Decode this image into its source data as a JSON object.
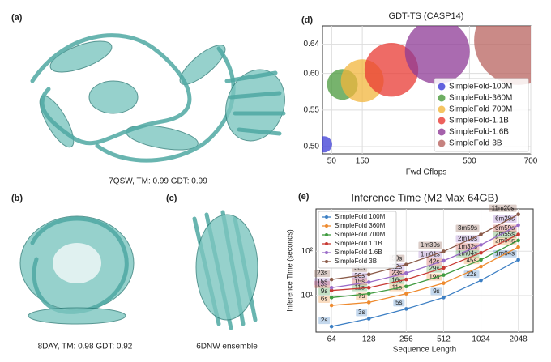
{
  "panels": [
    {
      "label": "(a)",
      "caption": "7QSW, TM: 0.99 GDT: 0.99"
    },
    {
      "label": "(b)",
      "caption": "8DAY, TM: 0.98 GDT: 0.92"
    },
    {
      "label": "(c)",
      "caption": "6DNW ensemble"
    }
  ],
  "chart_data": [
    {
      "panel_label": "(d)",
      "type": "scatter",
      "title": "GDT-TS (CASP14)",
      "x_label": "Fwd Gflops",
      "xlim": [
        20,
        700
      ],
      "xticks": [
        50,
        150,
        500,
        700
      ],
      "ylim": [
        0.49,
        0.665
      ],
      "yticks": [
        {
          "value": 0.5,
          "label": "0.50"
        },
        0.55,
        {
          "value": 0.6,
          "label": "0.60"
        },
        0.64
      ],
      "grid": true,
      "legend": "lower right",
      "series": [
        {
          "name": "SimpleFold-100M",
          "color": "#3b3bd6",
          "x": [
            25
          ],
          "values": [
            0.503
          ],
          "sizes": [
            100
          ]
        },
        {
          "name": "SimpleFold-360M",
          "color": "#4a9a3c",
          "x": [
            85
          ],
          "values": [
            0.585
          ],
          "sizes": [
            360
          ]
        },
        {
          "name": "SimpleFold-700M",
          "color": "#f2b63c",
          "x": [
            150
          ],
          "values": [
            0.59
          ],
          "sizes": [
            700
          ]
        },
        {
          "name": "SimpleFold-1.1B",
          "color": "#e83a33",
          "x": [
            245
          ],
          "values": [
            0.605
          ],
          "sizes": [
            1100
          ]
        },
        {
          "name": "SimpleFold-1.6B",
          "color": "#8e3a96",
          "x": [
            395
          ],
          "values": [
            0.63
          ],
          "sizes": [
            1600
          ]
        },
        {
          "name": "SimpleFold-3B",
          "color": "#b8635f",
          "x": [
            660
          ],
          "values": [
            0.645
          ],
          "sizes": [
            3000
          ]
        }
      ]
    },
    {
      "panel_label": "(e)",
      "type": "line",
      "title": "Inference Time (M2 Max 64GB)",
      "x_label": "Sequence Length",
      "y_label": "Inference Time (seconds)",
      "x": [
        64,
        128,
        256,
        512,
        1024,
        2048
      ],
      "xscale": "log",
      "yscale": "log",
      "xlim": [
        48,
        2700
      ],
      "xticks": [
        64,
        128,
        256,
        512,
        1024,
        2048
      ],
      "ylim": [
        1.5,
        900
      ],
      "yticks": [
        {
          "value": 10,
          "label": "10¹"
        },
        {
          "value": 100,
          "label": "10²"
        }
      ],
      "grid": true,
      "legend": "upper left",
      "series": [
        {
          "name": "SimpleFold 100M",
          "color": "#3c7fc4",
          "values": [
            2,
            3,
            5,
            9,
            22,
            64
          ],
          "value_labels": [
            "2s",
            "3s",
            "5s",
            "9s",
            "22s",
            "1m04s"
          ]
        },
        {
          "name": "SimpleFold 360M",
          "color": "#ee8a2e",
          "values": [
            6,
            7,
            11,
            19,
            45,
            124
          ],
          "value_labels": [
            "6s",
            "7s",
            "11s",
            "19s",
            "45s",
            "2m04s"
          ]
        },
        {
          "name": "SimpleFold 700M",
          "color": "#3f9b3f",
          "values": [
            9,
            11,
            16,
            29,
            64,
            175
          ],
          "value_labels": [
            "9s",
            "11s",
            "16s",
            "29s",
            "1m04s",
            "2m55s"
          ]
        },
        {
          "name": "SimpleFold 1.1B",
          "color": "#c83a33",
          "values": [
            13,
            15,
            23,
            42,
            92,
            239
          ],
          "value_labels": [
            "13s",
            "15s",
            "23s",
            "42s",
            "1m32s",
            "3m59s"
          ]
        },
        {
          "name": "SimpleFold 1.6B",
          "color": "#9a6cc8",
          "values": [
            15,
            20,
            32,
            61,
            139,
            388
          ],
          "value_labels": [
            "15s",
            "20s",
            "32s",
            "1m01s",
            "2m19s",
            "6m28s"
          ]
        },
        {
          "name": "SimpleFold 3B",
          "color": "#8a5a48",
          "values": [
            23,
            30,
            50,
            99,
            239,
            680
          ],
          "value_labels": [
            "23s",
            "30s",
            "50s",
            "1m39s",
            "3m59s",
            "11m20s"
          ]
        }
      ]
    }
  ]
}
